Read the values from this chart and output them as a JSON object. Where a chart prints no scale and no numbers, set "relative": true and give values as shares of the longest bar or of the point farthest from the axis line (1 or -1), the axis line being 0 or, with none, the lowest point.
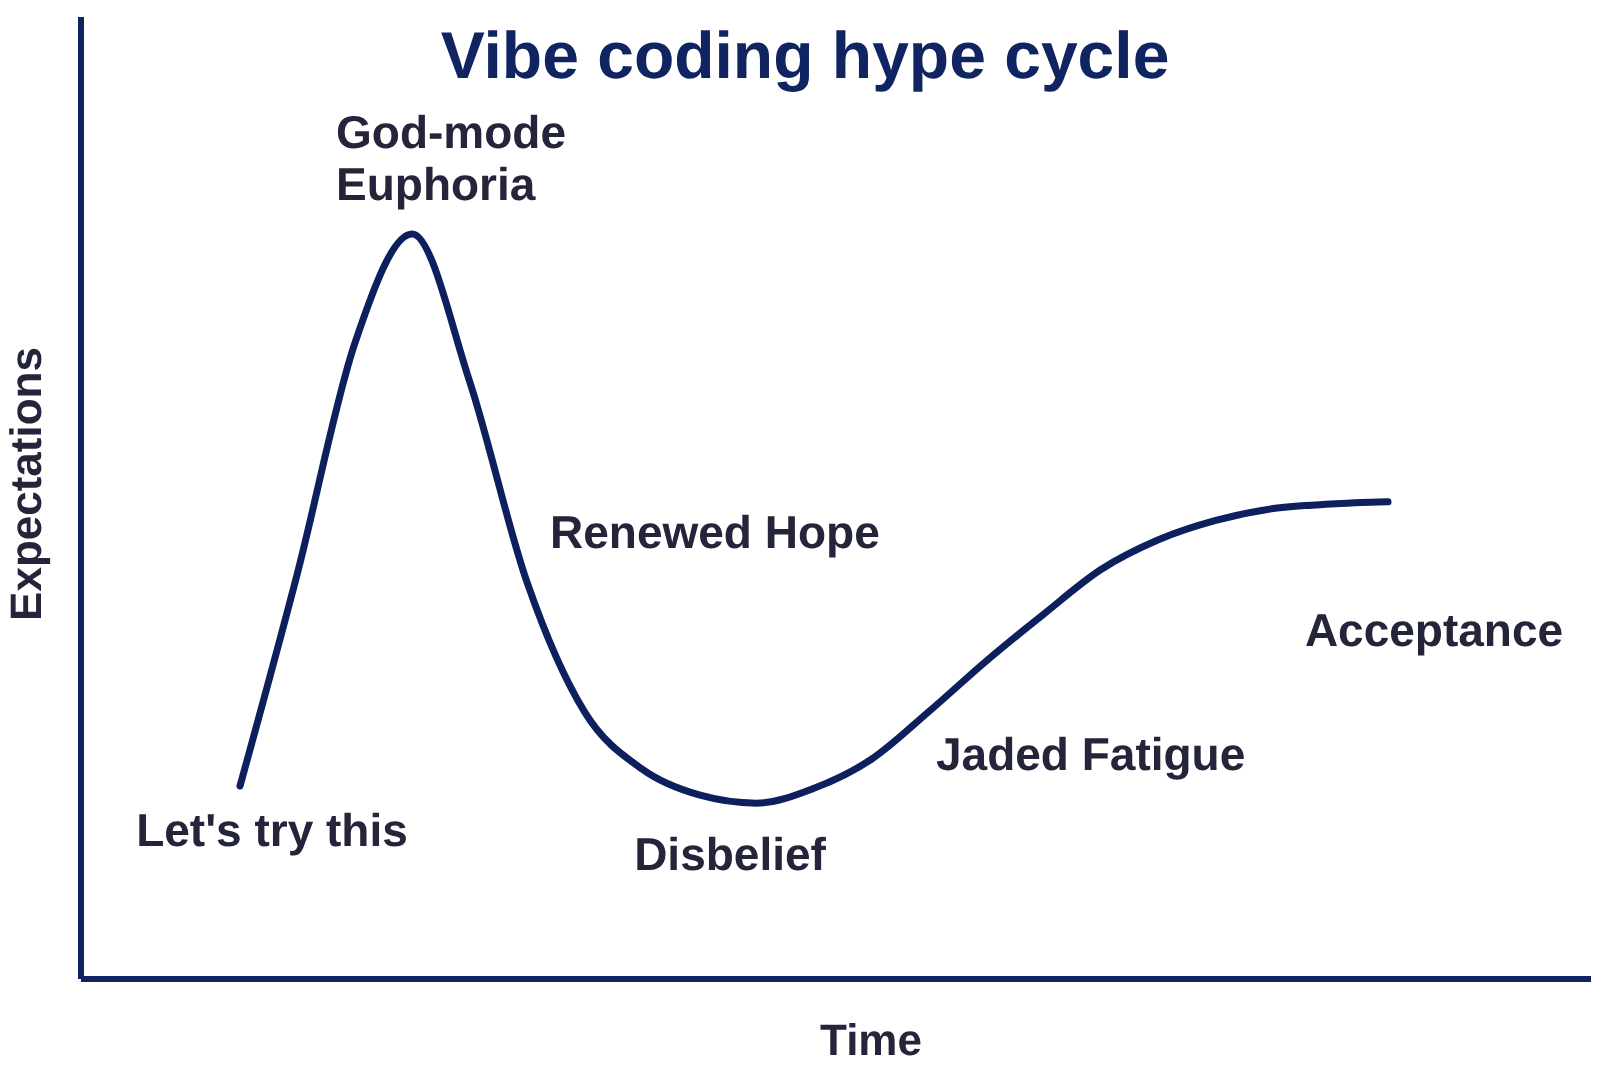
{
  "chart_data": {
    "type": "line",
    "title": "Vibe coding hype cycle",
    "xlabel": "Time",
    "ylabel": "Expectations",
    "categories": [
      null,
      null,
      null,
      null,
      null,
      null,
      null,
      null,
      null,
      null,
      null,
      null,
      null,
      null,
      null,
      null,
      null,
      null,
      null,
      null,
      null
    ],
    "values": [
      0.258,
      0.544,
      0.853,
      1.0,
      0.802,
      0.532,
      0.358,
      0.281,
      0.246,
      0.235,
      0.255,
      0.294,
      0.358,
      0.426,
      0.489,
      0.549,
      0.589,
      0.615,
      0.631,
      0.637,
      0.64
    ],
    "color": "#0d1f5c",
    "relative": true,
    "annotations": [
      "Let's try this",
      "God-mode\nEuphoria",
      "Renewed Hope",
      "Disbelief",
      "Jaded Fatigue",
      "Acceptance"
    ]
  }
}
